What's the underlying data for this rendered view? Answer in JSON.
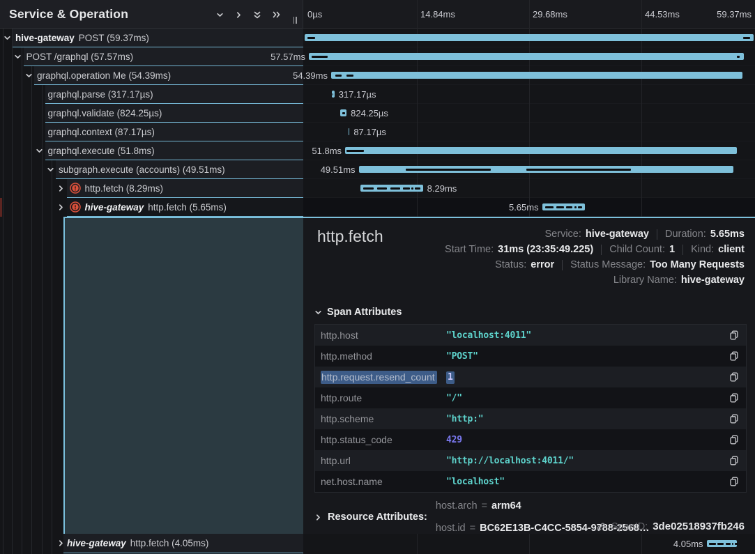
{
  "colors": {
    "accent_blue": "#7ec0da",
    "selection_border": "#7bc0dc",
    "string_value": "#5ed4cd",
    "number_value": "#7b79f1",
    "error_icon": "#d8503b",
    "selection_highlight": "#3d5c88",
    "teal_region": "#2b3a41"
  },
  "left_panel": {
    "title": "Service & Operation",
    "header_icons": [
      "chevron-down",
      "chevron-right",
      "double-chevron-down",
      "double-chevron-right"
    ],
    "rows": [
      {
        "depth": 0,
        "chevron": "down",
        "error": false,
        "service": "hive-gateway",
        "italic": false,
        "label": "POST (59.37ms)",
        "selected": false
      },
      {
        "depth": 1,
        "chevron": "down",
        "error": false,
        "service": "",
        "italic": false,
        "label": "POST /graphql (57.57ms)",
        "selected": false
      },
      {
        "depth": 2,
        "chevron": "down",
        "error": false,
        "service": "",
        "italic": false,
        "label": "graphql.operation Me (54.39ms)",
        "selected": false
      },
      {
        "depth": 3,
        "chevron": "",
        "error": false,
        "service": "",
        "italic": false,
        "label": "graphql.parse (317.17µs)",
        "selected": false
      },
      {
        "depth": 3,
        "chevron": "",
        "error": false,
        "service": "",
        "italic": false,
        "label": "graphql.validate (824.25µs)",
        "selected": false
      },
      {
        "depth": 3,
        "chevron": "",
        "error": false,
        "service": "",
        "italic": false,
        "label": "graphql.context (87.17µs)",
        "selected": false
      },
      {
        "depth": 3,
        "chevron": "down",
        "error": false,
        "service": "",
        "italic": false,
        "label": "graphql.execute (51.8ms)",
        "selected": false
      },
      {
        "depth": 4,
        "chevron": "down",
        "error": false,
        "service": "",
        "italic": false,
        "label": "subgraph.execute (accounts) (49.51ms)",
        "selected": false
      },
      {
        "depth": 5,
        "chevron": "right",
        "error": true,
        "service": "",
        "italic": false,
        "label": "http.fetch (8.29ms)",
        "selected": false
      },
      {
        "depth": 5,
        "chevron": "right",
        "error": true,
        "service": "hive-gateway",
        "italic": true,
        "label": "http.fetch (5.65ms)",
        "selected": true
      }
    ],
    "bottom_row": {
      "depth": 5,
      "chevron": "right",
      "error": false,
      "service": "hive-gateway",
      "italic": true,
      "label": "http.fetch (4.05ms)",
      "selected": false
    }
  },
  "timeline": {
    "total_ms": 59.37,
    "ticks": [
      {
        "label": "0µs",
        "pos": 0
      },
      {
        "label": "14.84ms",
        "pos": 0.25
      },
      {
        "label": "29.68ms",
        "pos": 0.5
      },
      {
        "label": "44.53ms",
        "pos": 0.75
      },
      {
        "label": "59.37ms",
        "pos": 1,
        "align": "right"
      }
    ],
    "rows": [
      {
        "start": 0,
        "dur": 59.37,
        "label": "",
        "side": "",
        "selected": false,
        "dashes": [
          {
            "s": 0.35,
            "w": 1.0
          },
          {
            "s": 57.95,
            "w": 0.95
          }
        ]
      },
      {
        "start": 0.55,
        "dur": 57.57,
        "label": "57.57ms",
        "side": "left",
        "selected": false,
        "dashes": [
          {
            "s": 0.9,
            "w": 2.1
          },
          {
            "s": 57.15,
            "w": 0.4
          }
        ]
      },
      {
        "start": 3.5,
        "dur": 54.39,
        "label": "54.39ms",
        "side": "left",
        "selected": false,
        "dashes": [
          {
            "s": 4.05,
            "w": 0.85
          },
          {
            "s": 5.5,
            "w": 0.95
          }
        ]
      },
      {
        "start": 3.62,
        "dur": 0.317,
        "label": "317.17µs",
        "side": "right",
        "selected": false,
        "dashes": [
          {
            "s": 3.68,
            "w": 0.14
          }
        ]
      },
      {
        "start": 4.72,
        "dur": 0.824,
        "label": "824.25µs",
        "side": "right",
        "selected": false,
        "dashes": [
          {
            "s": 4.95,
            "w": 0.38
          }
        ]
      },
      {
        "start": 5.8,
        "dur": 0.087,
        "label": "87.17µs",
        "side": "right",
        "selected": false,
        "dashes": []
      },
      {
        "start": 5.35,
        "dur": 51.8,
        "label": "51.8ms",
        "side": "left",
        "selected": false,
        "dashes": [
          {
            "s": 5.55,
            "w": 2.3
          }
        ]
      },
      {
        "start": 7.15,
        "dur": 49.51,
        "label": "49.51ms",
        "side": "left",
        "selected": false,
        "dashes": [
          {
            "s": 13.4,
            "w": 11.2
          },
          {
            "s": 29.3,
            "w": 13.8
          }
        ]
      },
      {
        "start": 7.35,
        "dur": 8.29,
        "label": "8.29ms",
        "side": "right",
        "selected": false,
        "dashes": [
          {
            "s": 7.75,
            "w": 1.35
          },
          {
            "s": 9.55,
            "w": 1.3
          },
          {
            "s": 11.3,
            "w": 1.3
          },
          {
            "s": 13.0,
            "w": 0.9
          },
          {
            "s": 14.15,
            "w": 0.25
          },
          {
            "s": 14.6,
            "w": 0.75
          }
        ]
      },
      {
        "start": 31.4,
        "dur": 5.65,
        "label": "5.65ms",
        "side": "left",
        "selected": true,
        "dashes": [
          {
            "s": 31.8,
            "w": 1.1
          },
          {
            "s": 33.3,
            "w": 1.0
          },
          {
            "s": 34.6,
            "w": 0.8
          },
          {
            "s": 35.7,
            "w": 0.25
          },
          {
            "s": 36.1,
            "w": 0.6
          }
        ]
      }
    ],
    "bottom_row": {
      "start": 53.15,
      "dur": 4.05,
      "label": "4.05ms",
      "side": "left",
      "selected": false,
      "dashes": [
        {
          "s": 53.5,
          "w": 0.85
        },
        {
          "s": 54.6,
          "w": 0.85
        },
        {
          "s": 55.7,
          "w": 0.6
        },
        {
          "s": 56.5,
          "w": 0.2
        },
        {
          "s": 56.85,
          "w": 0.45
        }
      ]
    }
  },
  "details": {
    "title": "http.fetch",
    "meta": [
      [
        {
          "label": "Service:",
          "value": "hive-gateway"
        },
        {
          "label": "Duration:",
          "value": "5.65ms"
        }
      ],
      [
        {
          "label": "Start Time:",
          "value": "31ms (23:35:49.225)"
        },
        {
          "label": "Child Count:",
          "value": "1"
        },
        {
          "label": "Kind:",
          "value": "client"
        }
      ],
      [
        {
          "label": "Status:",
          "value": "error"
        },
        {
          "label": "Status Message:",
          "value": "Too Many Requests"
        }
      ],
      [
        {
          "label": "Library Name:",
          "value": "hive-gateway"
        }
      ]
    ],
    "span_attributes": {
      "title": "Span Attributes",
      "rows": [
        {
          "key": "http.host",
          "value": "\"localhost:4011\"",
          "type": "string",
          "selected": false
        },
        {
          "key": "http.method",
          "value": "\"POST\"",
          "type": "string",
          "selected": false
        },
        {
          "key": "http.request.resend_count",
          "value": "1",
          "type": "number",
          "selected": true
        },
        {
          "key": "http.route",
          "value": "\"/\"",
          "type": "string",
          "selected": false
        },
        {
          "key": "http.scheme",
          "value": "\"http:\"",
          "type": "string",
          "selected": false
        },
        {
          "key": "http.status_code",
          "value": "429",
          "type": "number",
          "selected": false
        },
        {
          "key": "http.url",
          "value": "\"http://localhost:4011/\"",
          "type": "string",
          "selected": false
        },
        {
          "key": "net.host.name",
          "value": "\"localhost\"",
          "type": "string",
          "selected": false
        }
      ]
    },
    "resource_attributes": {
      "title": "Resource Attributes:",
      "items": [
        {
          "key": "host.arch",
          "value": "arm64"
        },
        {
          "key": "host.id",
          "value": "BC62E13B-C4CC-5854-9788-2568…"
        }
      ]
    },
    "span_id": {
      "label": "SpanID:",
      "value": "3de02518937fb246"
    }
  }
}
